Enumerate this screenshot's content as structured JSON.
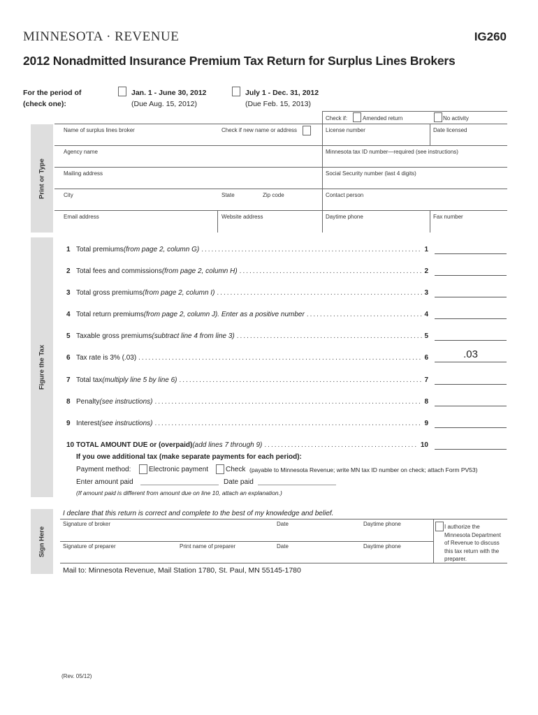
{
  "header": {
    "logo": "MINNESOTA · REVENUE",
    "form_number": "IG260",
    "title": "2012 Nonadmitted Insurance Premium Tax Return for Surplus Lines Brokers"
  },
  "period": {
    "label_1": "For the period of",
    "label_2": "(check one):",
    "option1": "Jan. 1 - June 30, 2012",
    "option1_due": "(Due Aug. 15, 2012)",
    "option2": "July 1 - Dec. 31, 2012",
    "option2_due": "(Due Feb. 15, 2013)"
  },
  "check_if": {
    "label": "Check if:",
    "amended": "Amended return",
    "no_activity": "No activity"
  },
  "print_band": "Print or Type",
  "fields": {
    "broker_name": "Name of surplus lines broker",
    "new_name": "Check if new name or address",
    "license": "License number",
    "date_licensed": "Date licensed",
    "agency": "Agency name",
    "tax_id": "Minnesota tax ID number—required (see instructions)",
    "mailing": "Mailing address",
    "ssn": "Social Security number (last 4 digits)",
    "city": "City",
    "state": "State",
    "zip": "Zip code",
    "contact": "Contact person",
    "email": "Email address",
    "website": "Website address",
    "day_phone": "Daytime phone",
    "fax": "Fax number"
  },
  "tax_band": "Figure the Tax",
  "lines": [
    {
      "num": "1",
      "text": "Total premiums ",
      "note": "(from page 2, column G)",
      "value": ""
    },
    {
      "num": "2",
      "text": "Total fees and commissions ",
      "note": "(from page 2, column H)",
      "value": ""
    },
    {
      "num": "3",
      "text": "Total gross premiums ",
      "note": "(from page 2, column I)",
      "value": ""
    },
    {
      "num": "4",
      "text": "Total return premiums ",
      "note": "(from page 2, column J). Enter as a positive number",
      "value": ""
    },
    {
      "num": "5",
      "text": "Taxable gross premiums ",
      "note": "(subtract line 4 from line 3)",
      "value": ""
    },
    {
      "num": "6",
      "text": "Tax rate is 3% (.03)",
      "note": "",
      "value": ".03"
    },
    {
      "num": "7",
      "text": "Total tax ",
      "note": "(multiply line 5 by line 6)",
      "value": ""
    },
    {
      "num": "8",
      "text": "Penalty ",
      "note": "(see instructions)",
      "value": ""
    },
    {
      "num": "9",
      "text": "Interest ",
      "note": "(see instructions)",
      "value": ""
    },
    {
      "num": "10",
      "text": "TOTAL AMOUNT DUE or (overpaid) ",
      "note": "(add lines 7 through 9)",
      "value": ""
    }
  ],
  "payment": {
    "heading": "If you owe additional tax (make separate payments for each period):",
    "method_label": "Payment method:",
    "electronic": "Electronic payment",
    "check": "Check",
    "check_note": "(payable to Minnesota Revenue; write MN tax ID number on check; attach Form PV53)",
    "amount_paid": "Enter amount paid",
    "date_paid": "Date paid",
    "note": "(If amount paid is different from amount due on line 10, attach an explanation.)"
  },
  "sign": {
    "band": "Sign Here",
    "declaration": "I declare that this return is correct and complete to the best of my knowledge and belief.",
    "sig_broker": "Signature of broker",
    "date": "Date",
    "day_phone": "Daytime phone",
    "sig_preparer": "Signature of preparer",
    "print_preparer": "Print name of preparer",
    "authorize": "I authorize the Minnesota Department of Revenue to discuss this tax return with the preparer."
  },
  "mail_to": "Mail to: Minnesota Revenue, Mail Station 1780, St. Paul, MN 55145-1780",
  "revision": "(Rev. 05/12)"
}
